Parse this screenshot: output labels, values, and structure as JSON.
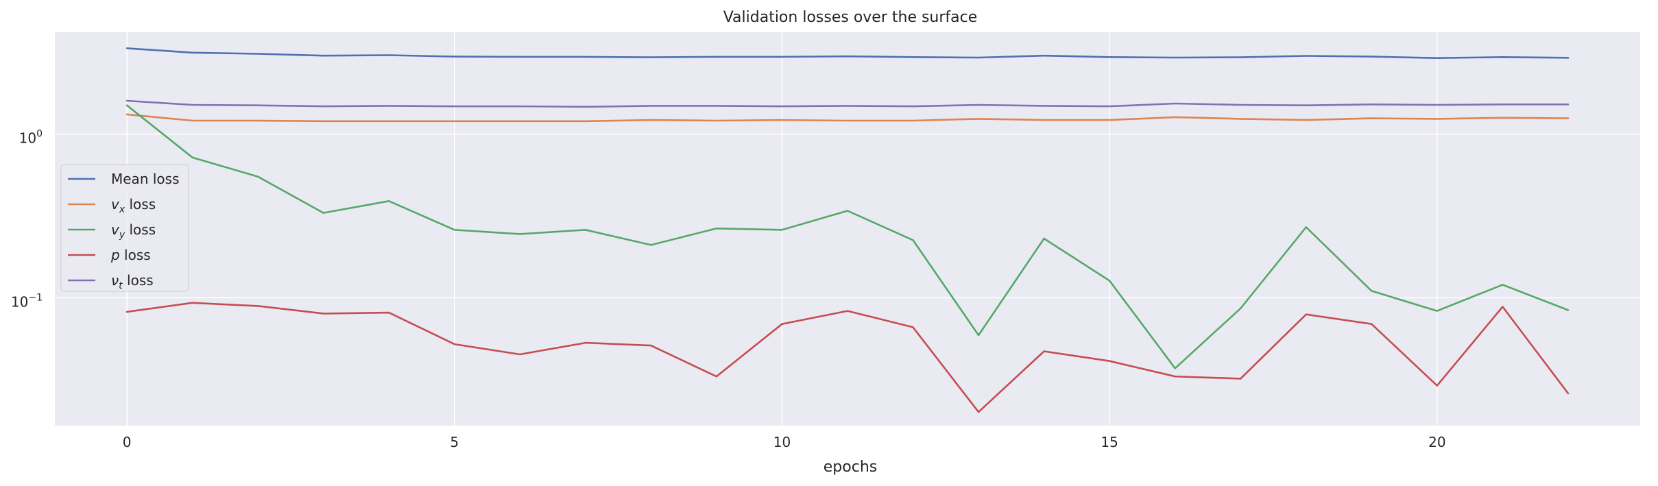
{
  "chart_data": {
    "type": "line",
    "title": "Validation losses over the surface",
    "xlabel": "epochs",
    "ylabel": "",
    "yscale": "log",
    "xlim": [
      -1.1,
      23.1
    ],
    "ylim": [
      0.0165,
      4.2
    ],
    "grid": true,
    "legend_position": "center-left",
    "x_ticks": [
      0,
      5,
      10,
      15,
      20
    ],
    "x_tick_labels": [
      "0",
      "5",
      "10",
      "15",
      "20"
    ],
    "y_ticks": [
      0.1,
      1
    ],
    "y_tick_labels": [
      {
        "base": "10",
        "exp": "−1"
      },
      {
        "base": "10",
        "exp": "0"
      }
    ],
    "x": [
      0,
      1,
      2,
      3,
      4,
      5,
      6,
      7,
      8,
      9,
      10,
      11,
      12,
      13,
      14,
      15,
      16,
      17,
      18,
      19,
      20,
      21,
      22
    ],
    "series": [
      {
        "name": "Mean loss",
        "label": {
          "sym": "",
          "sub": "",
          "suffix": "Mean loss"
        },
        "color": "#4c72b0",
        "values": [
          3.35,
          3.15,
          3.1,
          3.02,
          3.04,
          2.98,
          2.97,
          2.97,
          2.95,
          2.97,
          2.97,
          2.99,
          2.96,
          2.94,
          3.02,
          2.96,
          2.94,
          2.95,
          3.01,
          2.98,
          2.92,
          2.96,
          2.93
        ]
      },
      {
        "name": "v_x loss",
        "label": {
          "sym": "v",
          "sub": "x",
          "suffix": " loss"
        },
        "color": "#dd8452",
        "values": [
          1.32,
          1.21,
          1.21,
          1.2,
          1.2,
          1.2,
          1.2,
          1.2,
          1.22,
          1.21,
          1.22,
          1.21,
          1.21,
          1.24,
          1.22,
          1.22,
          1.27,
          1.24,
          1.22,
          1.25,
          1.24,
          1.26,
          1.25
        ]
      },
      {
        "name": "v_y loss",
        "label": {
          "sym": "v",
          "sub": "y",
          "suffix": " loss"
        },
        "color": "#55a868",
        "values": [
          1.5,
          0.72,
          0.55,
          0.33,
          0.39,
          0.26,
          0.245,
          0.26,
          0.21,
          0.265,
          0.26,
          0.34,
          0.225,
          0.059,
          0.23,
          0.127,
          0.037,
          0.086,
          0.27,
          0.11,
          0.083,
          0.12,
          0.084
        ]
      },
      {
        "name": "p loss",
        "label": {
          "sym": "p",
          "sub": "",
          "suffix": " loss"
        },
        "color": "#c44e52",
        "values": [
          0.082,
          0.093,
          0.089,
          0.08,
          0.081,
          0.052,
          0.045,
          0.053,
          0.051,
          0.033,
          0.069,
          0.083,
          0.066,
          0.02,
          0.047,
          0.041,
          0.033,
          0.032,
          0.079,
          0.069,
          0.029,
          0.088,
          0.026
        ]
      },
      {
        "name": "ν_t loss",
        "label": {
          "sym": "ν",
          "sub": "t",
          "suffix": " loss"
        },
        "color": "#8172b3",
        "values": [
          1.6,
          1.51,
          1.5,
          1.48,
          1.49,
          1.48,
          1.48,
          1.47,
          1.49,
          1.49,
          1.48,
          1.49,
          1.48,
          1.51,
          1.49,
          1.48,
          1.54,
          1.51,
          1.5,
          1.52,
          1.51,
          1.52,
          1.52
        ]
      }
    ]
  }
}
